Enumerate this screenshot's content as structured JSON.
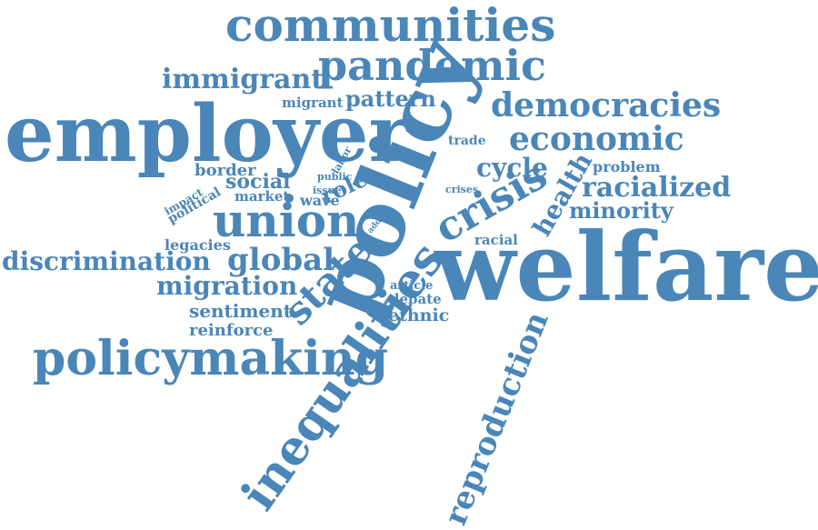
{
  "color": "#4a86b8",
  "words": {
    "communities": "communities",
    "pandemic": "pandemic",
    "immigrant": "immigrant",
    "employer": "employer",
    "migrant": "migrant",
    "pattern": "pattern",
    "policy": "policy",
    "democracies": "democracies",
    "economic": "economic",
    "trade": "trade",
    "labor": "labor",
    "cycle": "cycle",
    "problem": "problem",
    "health": "health",
    "racialized": "racialized",
    "border": "border",
    "social": "social",
    "public": "public",
    "issue": "issue",
    "role": "role",
    "crises": "crises",
    "impact": "impact",
    "political": "political",
    "market": "market",
    "wave": "wave",
    "crisis": "crisis",
    "minority": "minority",
    "union": "union",
    "addr": "addr",
    "legacies": "legacies",
    "racial": "racial",
    "discrimination": "discrimination",
    "global": "global",
    "state": "state",
    "welfare": "welfare",
    "migration": "migration",
    "article": "article",
    "debate": "debate",
    "sentiment": "sentiment",
    "ethnic": "ethnic",
    "reinforce": "reinforce",
    "policymaking": "policymaking",
    "inequalities": "inequalities",
    "reproduction": "reproduction"
  }
}
